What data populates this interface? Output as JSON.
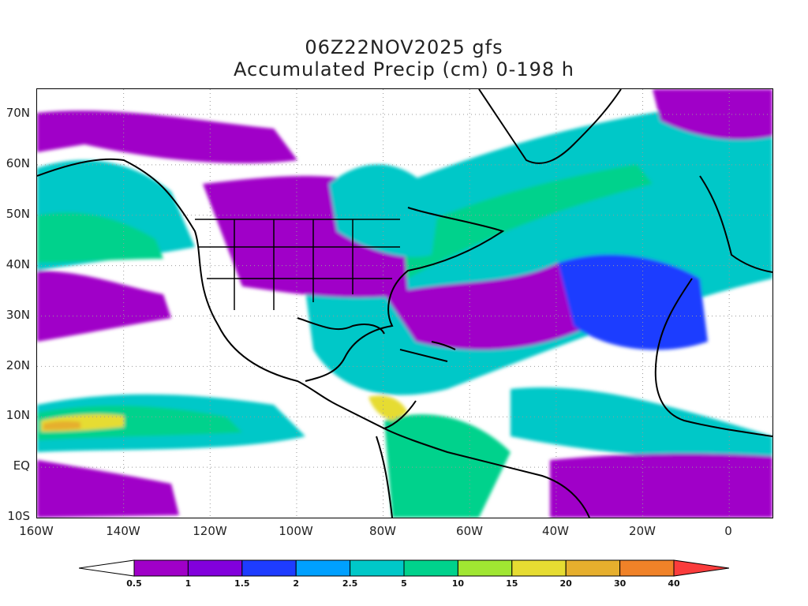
{
  "title": {
    "line1": "06Z22NOV2025 gfs",
    "line2": "Accumulated Precip (cm) 0-198 h"
  },
  "axes": {
    "y_labels": [
      "70N",
      "60N",
      "50N",
      "40N",
      "30N",
      "20N",
      "10N",
      "EQ",
      "10S"
    ],
    "x_labels": [
      "160W",
      "140W",
      "120W",
      "100W",
      "80W",
      "60W",
      "40W",
      "20W",
      "0"
    ],
    "lon_range": [
      -160,
      10
    ],
    "lat_range": [
      -10,
      75
    ],
    "grid": "dotted"
  },
  "colorbar": {
    "levels": [
      "0.5",
      "1",
      "1.5",
      "2",
      "2.5",
      "5",
      "10",
      "15",
      "20",
      "30",
      "40"
    ],
    "colors": [
      "#ffffff",
      "#a000c8",
      "#8200dc",
      "#1e3cff",
      "#00a0ff",
      "#00c8c8",
      "#00d28c",
      "#a0e632",
      "#e6dc32",
      "#e6af2d",
      "#f08228",
      "#fa3c3c"
    ]
  },
  "colors": {
    "ocean_default": "#ffffff",
    "coast": "#000000"
  }
}
